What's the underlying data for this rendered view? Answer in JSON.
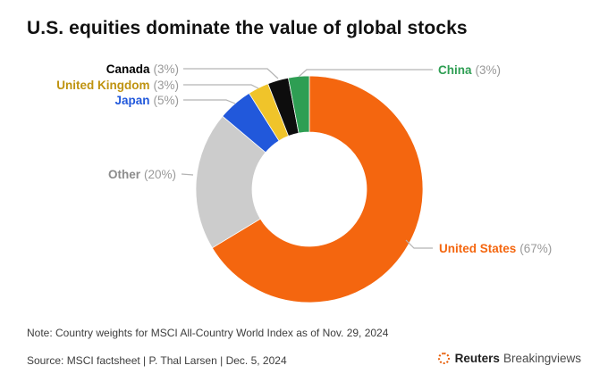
{
  "title": "U.S. equities dominate the value of global stocks",
  "note": "Note: Country weights for MSCI All-Country World Index as of Nov. 29, 2024",
  "source": "Source: MSCI factsheet | P. Thal Larsen | Dec. 5, 2024",
  "logo": {
    "brand": "Reuters",
    "suffix": "Breakingviews",
    "icon_color": "#e8610d"
  },
  "colors": {
    "leader_line": "#b3b3b3",
    "percent_text": "#999999",
    "title_text": "#111111",
    "footer_text": "#3d3d3d",
    "background": "#ffffff"
  },
  "chart_data": {
    "type": "pie",
    "subtype": "donut",
    "title": "U.S. equities dominate the value of global stocks",
    "start_angle_deg": 0,
    "direction": "clockwise",
    "inner_radius_ratio": 0.5,
    "legend_position": "callout-labels",
    "slices": [
      {
        "label": "United States",
        "value": 67,
        "pct_label": "(67%)",
        "color": "#f4660f",
        "label_color": "#f4660f"
      },
      {
        "label": "Other",
        "value": 20,
        "pct_label": "(20%)",
        "color": "#cccccc",
        "label_color": "#8c8c8c"
      },
      {
        "label": "Japan",
        "value": 5,
        "pct_label": "(5%)",
        "color": "#2158db",
        "label_color": "#2158db"
      },
      {
        "label": "United Kingdom",
        "value": 3,
        "pct_label": "(3%)",
        "color": "#f0c42a",
        "label_color": "#bf9310"
      },
      {
        "label": "Canada",
        "value": 3,
        "pct_label": "(3%)",
        "color": "#0d0d0d",
        "label_color": "#000000"
      },
      {
        "label": "China",
        "value": 3,
        "pct_label": "(3%)",
        "color": "#2e9e53",
        "label_color": "#2e9e53"
      }
    ]
  }
}
